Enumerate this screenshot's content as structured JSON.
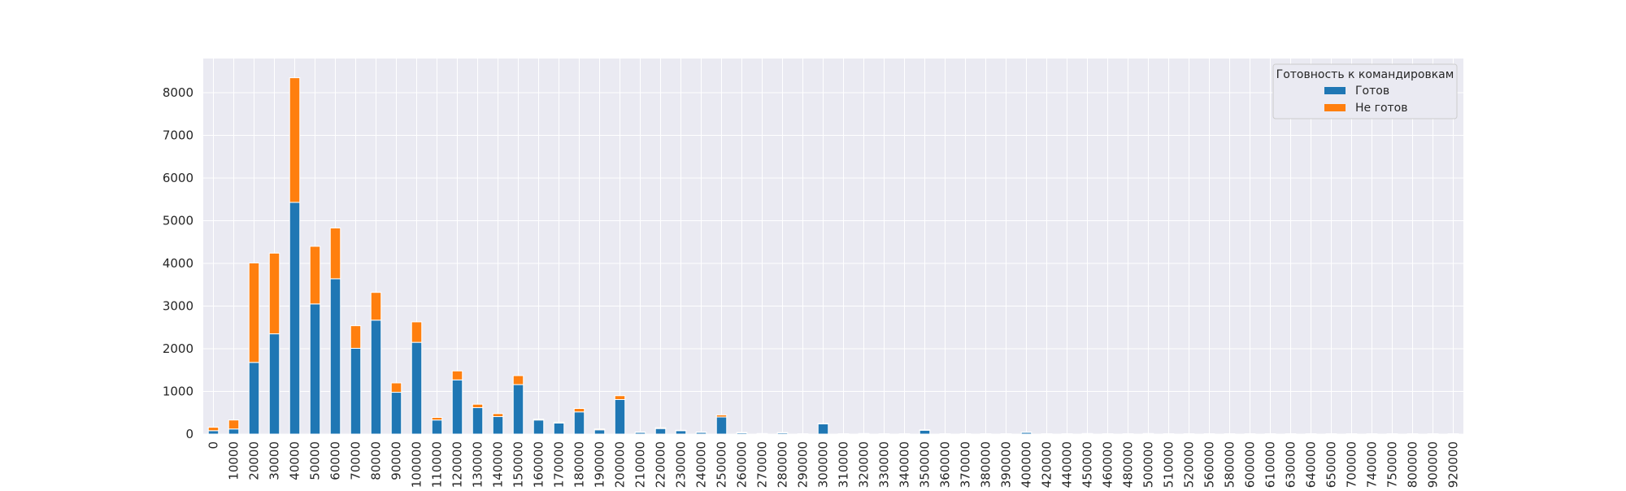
{
  "chart_data": {
    "type": "bar",
    "stacked": true,
    "title": "",
    "xlabel": "",
    "ylabel": "",
    "ylim": [
      0,
      8800
    ],
    "yticks": [
      0,
      1000,
      2000,
      3000,
      4000,
      5000,
      6000,
      7000,
      8000
    ],
    "grid": true,
    "legend": {
      "title": "Готовность к командировкам",
      "placement": "top-right"
    },
    "categories": [
      "0",
      "10000",
      "20000",
      "30000",
      "40000",
      "50000",
      "60000",
      "70000",
      "80000",
      "90000",
      "100000",
      "110000",
      "120000",
      "130000",
      "140000",
      "150000",
      "160000",
      "170000",
      "180000",
      "190000",
      "200000",
      "210000",
      "220000",
      "230000",
      "240000",
      "250000",
      "260000",
      "270000",
      "280000",
      "290000",
      "300000",
      "310000",
      "320000",
      "330000",
      "340000",
      "350000",
      "360000",
      "370000",
      "380000",
      "390000",
      "400000",
      "420000",
      "440000",
      "450000",
      "460000",
      "480000",
      "500000",
      "510000",
      "520000",
      "560000",
      "580000",
      "600000",
      "610000",
      "630000",
      "640000",
      "650000",
      "700000",
      "740000",
      "750000",
      "800000",
      "900000",
      "920000"
    ],
    "series": [
      {
        "name": "Готов",
        "color": "#1f77b4",
        "values": [
          80,
          120,
          1680,
          2350,
          5430,
          3050,
          3640,
          2010,
          2670,
          980,
          2150,
          330,
          1270,
          620,
          410,
          1160,
          330,
          260,
          520,
          100,
          810,
          40,
          130,
          80,
          40,
          400,
          30,
          10,
          30,
          5,
          240,
          5,
          10,
          5,
          5,
          90,
          5,
          5,
          5,
          5,
          40,
          5,
          5,
          10,
          5,
          5,
          10,
          5,
          5,
          5,
          5,
          5,
          5,
          5,
          5,
          5,
          5,
          5,
          5,
          5,
          5,
          5
        ]
      },
      {
        "name": "Не готов",
        "color": "#ff7f0e",
        "values": [
          80,
          210,
          2330,
          1890,
          2920,
          1350,
          1190,
          530,
          650,
          220,
          480,
          60,
          210,
          80,
          70,
          210,
          20,
          20,
          80,
          20,
          90,
          10,
          20,
          10,
          10,
          50,
          10,
          5,
          5,
          5,
          10,
          5,
          5,
          5,
          5,
          10,
          5,
          5,
          5,
          5,
          5,
          5,
          5,
          5,
          5,
          5,
          5,
          5,
          5,
          5,
          5,
          5,
          5,
          5,
          5,
          5,
          5,
          5,
          5,
          5,
          5,
          5
        ]
      }
    ]
  }
}
